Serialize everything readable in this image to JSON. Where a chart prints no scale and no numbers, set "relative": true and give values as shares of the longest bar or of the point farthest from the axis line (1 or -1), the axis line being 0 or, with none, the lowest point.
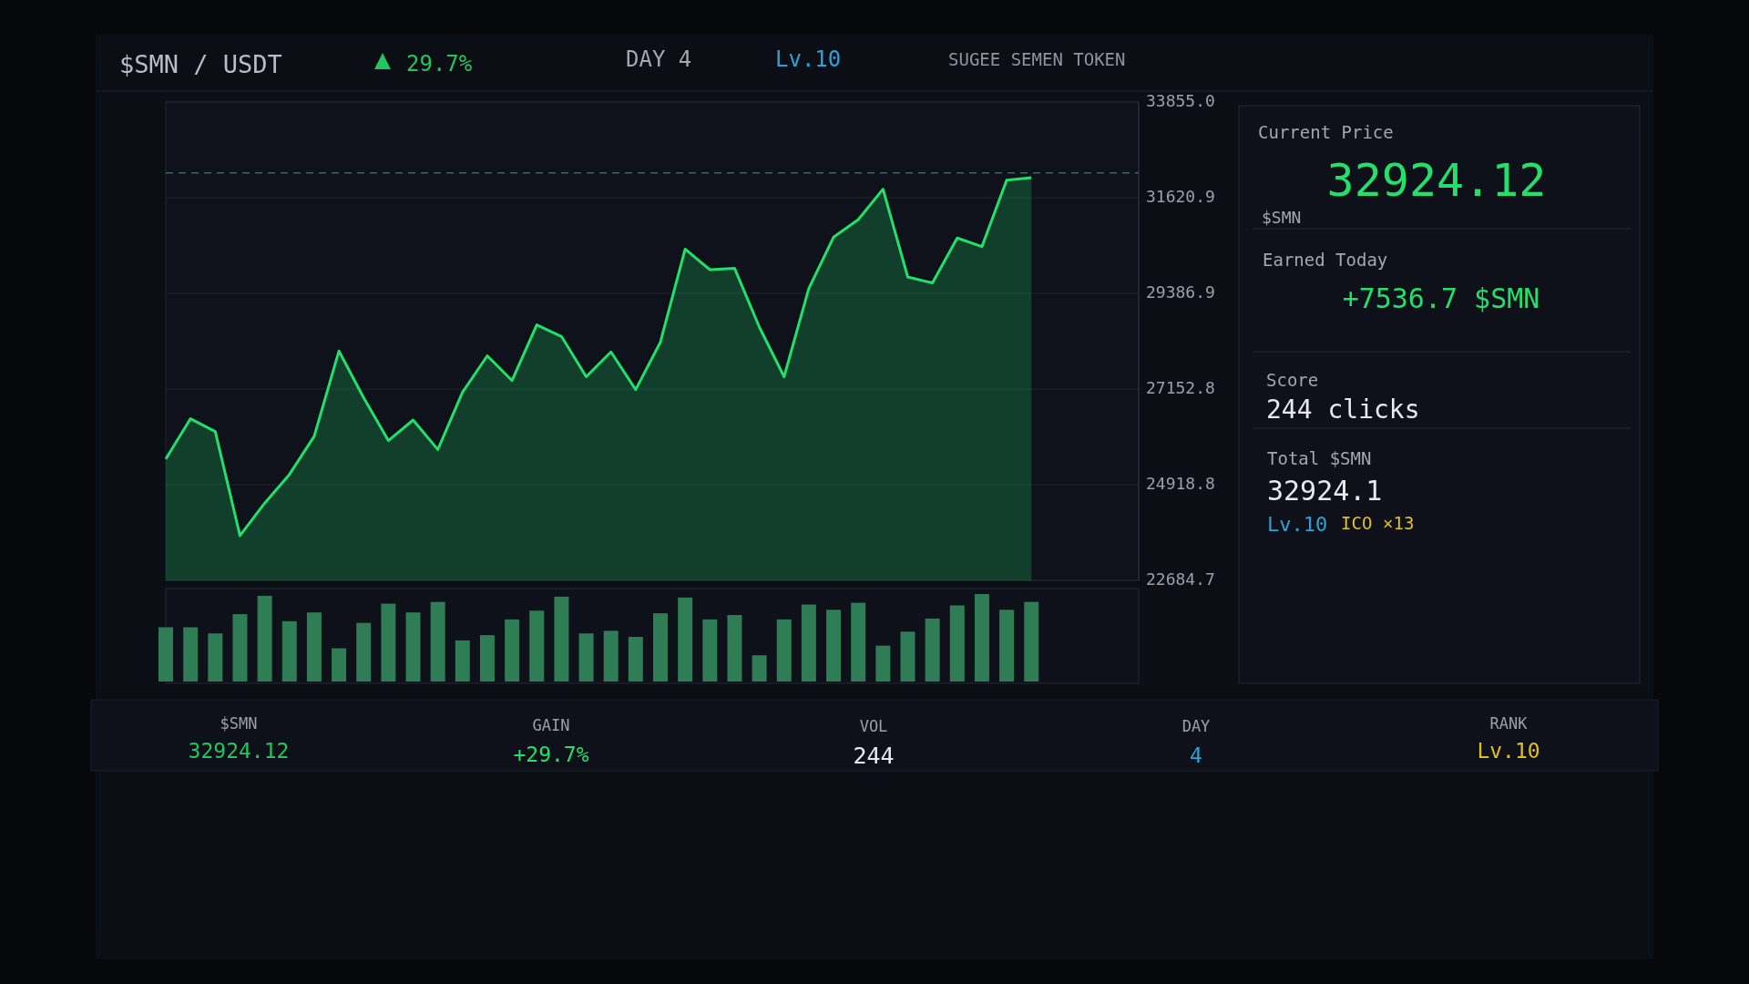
{
  "chart_data": [
    {
      "type": "area",
      "title": "$SMN / USDT",
      "categories": [
        null,
        null,
        null,
        null,
        null,
        null,
        null,
        null,
        null,
        null,
        null,
        null,
        null,
        null,
        null,
        null,
        null,
        null,
        null,
        null,
        null,
        null,
        null,
        null,
        null,
        null,
        null,
        null,
        null,
        null,
        null,
        null,
        null,
        null,
        null,
        null
      ],
      "series": [
        {
          "color": "#22e06a",
          "values": [
            25520,
            26460,
            26160,
            23730,
            24490,
            25160,
            26050,
            28040,
            26950,
            25950,
            26430,
            25740,
            27080,
            27930,
            27350,
            28650,
            28380,
            27440,
            28020,
            27140,
            28250,
            30420,
            29940,
            29970,
            28600,
            27440,
            29500,
            30700,
            31110,
            31820,
            29770,
            29630,
            30680,
            30480,
            32030,
            32090
          ]
        }
      ],
      "ylim": [
        22684.7,
        33855
      ],
      "yticks": [
        22684.7,
        24918.8,
        27152.8,
        29386.9,
        31620.9,
        {
          "value": 33855,
          "label": "33855.0"
        }
      ],
      "grid": "y",
      "tick_labels": "y",
      "ref_lines": [
        {
          "axis": "y",
          "value": 32200,
          "color": "#2e6b66",
          "line_style": "dashed"
        }
      ]
    },
    {
      "type": "bar",
      "relative": true,
      "tick_labels": false,
      "color": "#2e7d55",
      "categories": [
        null,
        null,
        null,
        null,
        null,
        null,
        null,
        null,
        null,
        null,
        null,
        null,
        null,
        null,
        null,
        null,
        null,
        null,
        null,
        null,
        null,
        null,
        null,
        null,
        null,
        null,
        null,
        null,
        null,
        null,
        null,
        null,
        null,
        null,
        null,
        null
      ],
      "values": [
        0.62,
        0.62,
        0.55,
        0.77,
        0.98,
        0.69,
        0.79,
        0.38,
        0.67,
        0.89,
        0.79,
        0.91,
        0.47,
        0.53,
        0.71,
        0.81,
        0.97,
        0.55,
        0.58,
        0.51,
        0.78,
        0.96,
        0.71,
        0.76,
        0.3,
        0.71,
        0.88,
        0.82,
        0.9,
        0.41,
        0.57,
        0.72,
        0.87,
        1,
        0.82,
        0.91
      ]
    },
    {
      "type": "other",
      "annotations": [
        "29.7%",
        "DAY 4",
        "Lv.10",
        "SUGEE SEMEN TOKEN",
        "Current Price",
        "32924.12",
        "$SMN",
        "Earned Today",
        "+7536.7 $SMN",
        "Score",
        "244 clicks",
        "Total $SMN",
        "32924.1",
        "Lv.10",
        "ICO",
        "×13",
        "$SMN",
        "32924.12",
        "GAIN",
        "+29.7%",
        "VOL",
        "244",
        "DAY",
        "4",
        "RANK",
        "Lv.10"
      ]
    }
  ]
}
